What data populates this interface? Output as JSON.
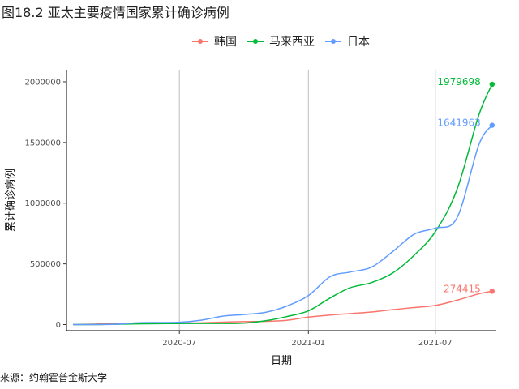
{
  "page": {
    "title": "图18.2 亚太主要疫情国家累计确诊病例",
    "source": "来源：约翰霍普金斯大学"
  },
  "chart_data": {
    "type": "line",
    "title": "图18.2 亚太主要疫情国家累计确诊病例",
    "xlabel": "日期",
    "ylabel": "累计确诊病例",
    "xlim": [
      "2020-01-22",
      "2021-09-26"
    ],
    "ylim": [
      -50000,
      2100000
    ],
    "x_ticks": [
      "2020-07",
      "2021-01",
      "2021-07"
    ],
    "x_tick_dates": [
      "2020-07-01",
      "2021-01-01",
      "2021-07-01"
    ],
    "y_ticks": [
      "0",
      "500000",
      "1000000",
      "1500000",
      "2000000"
    ],
    "y_tick_values": [
      0,
      500000,
      1000000,
      1500000,
      2000000
    ],
    "grid": "vertical major",
    "legend_position": "top",
    "series": [
      {
        "name": "韩国",
        "color": "#F8766D",
        "end_label": "274415",
        "points": [
          [
            "2020-02-01",
            11
          ],
          [
            "2020-03-01",
            3736
          ],
          [
            "2020-04-01",
            9887
          ],
          [
            "2020-05-01",
            10780
          ],
          [
            "2020-06-01",
            11541
          ],
          [
            "2020-07-01",
            12850
          ],
          [
            "2020-08-01",
            14336
          ],
          [
            "2020-09-01",
            20182
          ],
          [
            "2020-10-01",
            23889
          ],
          [
            "2020-11-01",
            26732
          ],
          [
            "2020-12-01",
            35163
          ],
          [
            "2021-01-01",
            61769
          ],
          [
            "2021-02-01",
            78508
          ],
          [
            "2021-03-01",
            90372
          ],
          [
            "2021-04-01",
            103639
          ],
          [
            "2021-05-01",
            122633
          ],
          [
            "2021-06-01",
            140340
          ],
          [
            "2021-07-01",
            157723
          ],
          [
            "2021-08-01",
            201002
          ],
          [
            "2021-09-01",
            253445
          ],
          [
            "2021-09-20",
            274415
          ]
        ]
      },
      {
        "name": "马来西亚",
        "color": "#00BA38",
        "end_label": "1979698",
        "points": [
          [
            "2020-02-01",
            8
          ],
          [
            "2020-03-01",
            29
          ],
          [
            "2020-04-01",
            2908
          ],
          [
            "2020-05-01",
            6071
          ],
          [
            "2020-06-01",
            7857
          ],
          [
            "2020-07-01",
            8643
          ],
          [
            "2020-08-01",
            8976
          ],
          [
            "2020-09-01",
            9354
          ],
          [
            "2020-10-01",
            11771
          ],
          [
            "2020-11-01",
            31548
          ],
          [
            "2020-12-01",
            65697
          ],
          [
            "2021-01-01",
            113010
          ],
          [
            "2021-02-01",
            219173
          ],
          [
            "2021-03-01",
            302580
          ],
          [
            "2021-04-01",
            346000
          ],
          [
            "2021-05-01",
            424000
          ],
          [
            "2021-06-01",
            572000
          ],
          [
            "2021-07-01",
            765000
          ],
          [
            "2021-08-01",
            1113000
          ],
          [
            "2021-09-01",
            1725000
          ],
          [
            "2021-09-20",
            1979698
          ]
        ]
      },
      {
        "name": "日本",
        "color": "#619CFF",
        "end_label": "1641963",
        "points": [
          [
            "2020-02-01",
            20
          ],
          [
            "2020-03-01",
            239
          ],
          [
            "2020-04-01",
            2384
          ],
          [
            "2020-05-01",
            14281
          ],
          [
            "2020-06-01",
            16986
          ],
          [
            "2020-07-01",
            19000
          ],
          [
            "2020-08-01",
            36000
          ],
          [
            "2020-09-01",
            69000
          ],
          [
            "2020-10-01",
            83000
          ],
          [
            "2020-11-01",
            101000
          ],
          [
            "2020-12-01",
            152000
          ],
          [
            "2021-01-01",
            239000
          ],
          [
            "2021-02-01",
            395000
          ],
          [
            "2021-03-01",
            432000
          ],
          [
            "2021-04-01",
            473000
          ],
          [
            "2021-05-01",
            600000
          ],
          [
            "2021-06-01",
            745000
          ],
          [
            "2021-07-01",
            795000
          ],
          [
            "2021-08-01",
            880000
          ],
          [
            "2021-09-01",
            1480000
          ],
          [
            "2021-09-20",
            1641963
          ]
        ]
      }
    ]
  }
}
